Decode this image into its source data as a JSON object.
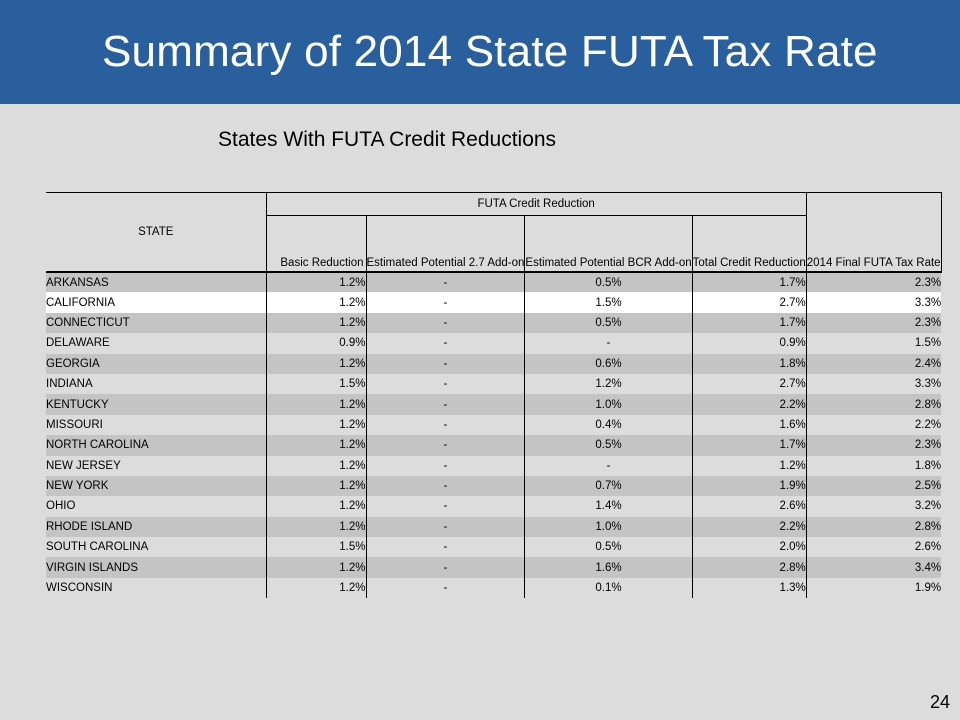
{
  "slide": {
    "title": "Summary of 2014 State FUTA Tax Rate",
    "subtitle": "States With FUTA Credit Reductions",
    "page_number": "24",
    "colors": {
      "header_bg": "#2a5f9e",
      "slide_bg": "#dcdcdc",
      "row_shade": "#c4c4c4"
    }
  },
  "table": {
    "headers": {
      "state": "STATE",
      "group": "FUTA Credit Reduction",
      "basic": "Basic Reduction",
      "est27": "Estimated Potential 2.7 Add-on",
      "estbcr": "Estimated Potential BCR Add-on",
      "total": "Total Credit Reduction",
      "final": "2014 Final FUTA Tax Rate"
    },
    "rows": [
      {
        "state": "ARKANSAS",
        "basic": "1.2%",
        "est27": "-",
        "estbcr": "0.5%",
        "total": "1.7%",
        "final": "2.3%"
      },
      {
        "state": "CALIFORNIA",
        "basic": "1.2%",
        "est27": "-",
        "estbcr": "1.5%",
        "total": "2.7%",
        "final": "3.3%"
      },
      {
        "state": "CONNECTICUT",
        "basic": "1.2%",
        "est27": "-",
        "estbcr": "0.5%",
        "total": "1.7%",
        "final": "2.3%"
      },
      {
        "state": "DELAWARE",
        "basic": "0.9%",
        "est27": "-",
        "estbcr": "-",
        "total": "0.9%",
        "final": "1.5%"
      },
      {
        "state": "GEORGIA",
        "basic": "1.2%",
        "est27": "-",
        "estbcr": "0.6%",
        "total": "1.8%",
        "final": "2.4%"
      },
      {
        "state": "INDIANA",
        "basic": "1.5%",
        "est27": "-",
        "estbcr": "1.2%",
        "total": "2.7%",
        "final": "3.3%"
      },
      {
        "state": "KENTUCKY",
        "basic": "1.2%",
        "est27": "-",
        "estbcr": "1.0%",
        "total": "2.2%",
        "final": "2.8%"
      },
      {
        "state": "MISSOURI",
        "basic": "1.2%",
        "est27": "-",
        "estbcr": "0.4%",
        "total": "1.6%",
        "final": "2.2%"
      },
      {
        "state": "NORTH CAROLINA",
        "basic": "1.2%",
        "est27": "-",
        "estbcr": "0.5%",
        "total": "1.7%",
        "final": "2.3%"
      },
      {
        "state": "NEW JERSEY",
        "basic": "1.2%",
        "est27": "-",
        "estbcr": "-",
        "total": "1.2%",
        "final": "1.8%"
      },
      {
        "state": "NEW YORK",
        "basic": "1.2%",
        "est27": "-",
        "estbcr": "0.7%",
        "total": "1.9%",
        "final": "2.5%"
      },
      {
        "state": "OHIO",
        "basic": "1.2%",
        "est27": "-",
        "estbcr": "1.4%",
        "total": "2.6%",
        "final": "3.2%"
      },
      {
        "state": "RHODE ISLAND",
        "basic": "1.2%",
        "est27": "-",
        "estbcr": "1.0%",
        "total": "2.2%",
        "final": "2.8%"
      },
      {
        "state": "SOUTH CAROLINA",
        "basic": "1.5%",
        "est27": "-",
        "estbcr": "0.5%",
        "total": "2.0%",
        "final": "2.6%"
      },
      {
        "state": "VIRGIN ISLANDS",
        "basic": "1.2%",
        "est27": "-",
        "estbcr": "1.6%",
        "total": "2.8%",
        "final": "3.4%"
      },
      {
        "state": "WISCONSIN",
        "basic": "1.2%",
        "est27": "-",
        "estbcr": "0.1%",
        "total": "1.3%",
        "final": "1.9%"
      }
    ]
  }
}
